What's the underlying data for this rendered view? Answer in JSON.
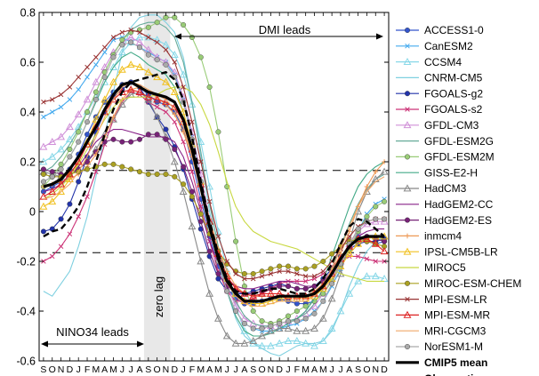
{
  "chart_data": {
    "type": "line",
    "title": "",
    "xlabel": "",
    "ylabel": "",
    "ylim": [
      -0.6,
      0.8
    ],
    "yticks": [
      "0.8",
      "0.6",
      "0.4",
      "0.2",
      "0",
      "-0.2",
      "-0.4",
      "-0.6"
    ],
    "x_months": [
      "S",
      "O",
      "N",
      "D",
      "J",
      "F",
      "M",
      "A",
      "M",
      "J",
      "J",
      "A",
      "S",
      "O",
      "N",
      "D",
      "J",
      "F",
      "M",
      "A",
      "M",
      "J",
      "J",
      "A",
      "S",
      "O",
      "N",
      "D",
      "J",
      "F",
      "M",
      "A",
      "M",
      "J",
      "J",
      "A",
      "S",
      "O",
      "N",
      "D"
    ],
    "reference_lines": [
      0.165,
      -0.165
    ],
    "zero_lag_band": {
      "from_index": 12,
      "to_index": 15,
      "label": "zero lag"
    },
    "annotations": {
      "dmi_leads": "DMI leads",
      "nino34_leads": "NINO34 leads"
    },
    "legend_placement": "right-outside",
    "series": [
      {
        "name": "ACCESS1-0",
        "color": "#3355cc",
        "marker": "circle",
        "values": [
          0.08,
          0.1,
          0.12,
          0.17,
          0.23,
          0.31,
          0.38,
          0.44,
          0.48,
          0.51,
          0.52,
          0.5,
          0.47,
          0.44,
          0.43,
          0.4,
          0.33,
          0.2,
          0.05,
          -0.1,
          -0.22,
          -0.31,
          -0.35,
          -0.37,
          -0.37,
          -0.36,
          -0.35,
          -0.35,
          -0.36,
          -0.37,
          -0.37,
          -0.36,
          -0.33,
          -0.28,
          -0.2,
          -0.13,
          -0.1,
          -0.12,
          -0.13,
          -0.12
        ]
      },
      {
        "name": "CanESM2",
        "color": "#44aaee",
        "marker": "x",
        "values": [
          0.38,
          0.4,
          0.42,
          0.45,
          0.49,
          0.54,
          0.59,
          0.64,
          0.69,
          0.7,
          0.68,
          0.66,
          0.64,
          0.62,
          0.6,
          0.55,
          0.45,
          0.3,
          0.12,
          -0.05,
          -0.2,
          -0.32,
          -0.4,
          -0.45,
          -0.47,
          -0.48,
          -0.48,
          -0.47,
          -0.46,
          -0.45,
          -0.43,
          -0.4,
          -0.36,
          -0.3,
          -0.23,
          -0.15,
          -0.08,
          -0.01,
          0.03,
          0.05
        ]
      },
      {
        "name": "CCSM4",
        "color": "#88d8e8",
        "marker": "triangle",
        "values": [
          0.2,
          0.22,
          0.25,
          0.29,
          0.34,
          0.4,
          0.46,
          0.52,
          0.58,
          0.64,
          0.68,
          0.7,
          0.7,
          0.69,
          0.67,
          0.63,
          0.55,
          0.43,
          0.28,
          0.1,
          -0.08,
          -0.24,
          -0.38,
          -0.48,
          -0.53,
          -0.54,
          -0.54,
          -0.53,
          -0.52,
          -0.52,
          -0.53,
          -0.54,
          -0.52,
          -0.47,
          -0.4,
          -0.33,
          -0.28,
          -0.26,
          -0.26,
          -0.27
        ]
      },
      {
        "name": "CNRM-CM5",
        "color": "#7fd0e0",
        "marker": "none",
        "values": [
          -0.32,
          -0.34,
          -0.29,
          -0.24,
          -0.14,
          -0.02,
          0.14,
          0.3,
          0.48,
          0.64,
          0.74,
          0.78,
          0.79,
          0.79,
          0.76,
          0.72,
          0.62,
          0.44,
          0.22,
          0.0,
          -0.18,
          -0.32,
          -0.43,
          -0.5,
          -0.53,
          -0.55,
          -0.57,
          -0.58,
          -0.56,
          -0.54,
          -0.53,
          -0.53,
          -0.52,
          -0.48,
          -0.4,
          -0.3,
          -0.22,
          -0.16,
          -0.12,
          -0.1
        ]
      },
      {
        "name": "FGOALS-g2",
        "color": "#2233aa",
        "marker": "circle",
        "values": [
          -0.08,
          -0.07,
          -0.03,
          0.03,
          0.12,
          0.22,
          0.32,
          0.4,
          0.46,
          0.49,
          0.52,
          0.5,
          0.44,
          0.38,
          0.33,
          0.26,
          0.17,
          0.05,
          -0.07,
          -0.18,
          -0.27,
          -0.32,
          -0.33,
          -0.33,
          -0.32,
          -0.31,
          -0.3,
          -0.29,
          -0.3,
          -0.31,
          -0.31,
          -0.3,
          -0.27,
          -0.23,
          -0.18,
          -0.15,
          -0.13,
          -0.12,
          -0.12,
          -0.11
        ]
      },
      {
        "name": "FGOALS-s2",
        "color": "#cc3377",
        "marker": "x",
        "values": [
          -0.2,
          -0.18,
          -0.14,
          -0.09,
          -0.02,
          0.06,
          0.16,
          0.27,
          0.37,
          0.44,
          0.48,
          0.47,
          0.44,
          0.42,
          0.4,
          0.36,
          0.28,
          0.16,
          0.02,
          -0.12,
          -0.24,
          -0.32,
          -0.36,
          -0.36,
          -0.35,
          -0.33,
          -0.31,
          -0.29,
          -0.28,
          -0.28,
          -0.28,
          -0.27,
          -0.25,
          -0.22,
          -0.19,
          -0.18,
          -0.18,
          -0.19,
          -0.2,
          -0.2
        ]
      },
      {
        "name": "GFDL-CM3",
        "color": "#d090d8",
        "marker": "triangle",
        "values": [
          0.26,
          0.28,
          0.3,
          0.34,
          0.39,
          0.45,
          0.52,
          0.58,
          0.64,
          0.68,
          0.7,
          0.68,
          0.65,
          0.62,
          0.6,
          0.56,
          0.46,
          0.32,
          0.15,
          -0.03,
          -0.18,
          -0.3,
          -0.38,
          -0.43,
          -0.45,
          -0.46,
          -0.46,
          -0.45,
          -0.44,
          -0.43,
          -0.41,
          -0.38,
          -0.33,
          -0.27,
          -0.2,
          -0.13,
          -0.08,
          -0.05,
          -0.04,
          -0.04
        ]
      },
      {
        "name": "GFDL-ESM2G",
        "color": "#66aa99",
        "marker": "none",
        "values": [
          0.16,
          0.18,
          0.22,
          0.27,
          0.33,
          0.4,
          0.48,
          0.56,
          0.63,
          0.69,
          0.73,
          0.75,
          0.76,
          0.76,
          0.74,
          0.7,
          0.6,
          0.44,
          0.24,
          0.03,
          -0.14,
          -0.27,
          -0.36,
          -0.42,
          -0.45,
          -0.46,
          -0.46,
          -0.45,
          -0.44,
          -0.43,
          -0.41,
          -0.37,
          -0.31,
          -0.23,
          -0.14,
          -0.05,
          0.03,
          0.09,
          0.13,
          0.15
        ]
      },
      {
        "name": "GFDL-ESM2M",
        "color": "#99cc77",
        "marker": "circle",
        "values": [
          0.1,
          0.14,
          0.19,
          0.25,
          0.32,
          0.4,
          0.48,
          0.56,
          0.63,
          0.69,
          0.72,
          0.73,
          0.74,
          0.76,
          0.78,
          0.78,
          0.75,
          0.7,
          0.62,
          0.5,
          0.32,
          0.1,
          -0.12,
          -0.3,
          -0.4,
          -0.44,
          -0.45,
          -0.44,
          -0.42,
          -0.4,
          -0.38,
          -0.36,
          -0.33,
          -0.28,
          -0.22,
          -0.15,
          -0.08,
          -0.02,
          0.02,
          0.04
        ]
      },
      {
        "name": "GISS-E2-H",
        "color": "#44aa88",
        "marker": "none",
        "values": [
          0.12,
          0.14,
          0.17,
          0.22,
          0.28,
          0.36,
          0.44,
          0.52,
          0.58,
          0.62,
          0.64,
          0.62,
          0.59,
          0.57,
          0.55,
          0.5,
          0.4,
          0.26,
          0.1,
          -0.06,
          -0.2,
          -0.32,
          -0.42,
          -0.48,
          -0.5,
          -0.5,
          -0.49,
          -0.47,
          -0.45,
          -0.43,
          -0.4,
          -0.35,
          -0.28,
          -0.18,
          -0.08,
          0.02,
          0.1,
          0.15,
          0.18,
          0.2
        ]
      },
      {
        "name": "HadCM3",
        "color": "#888888",
        "marker": "triangle",
        "values": [
          0.16,
          0.15,
          0.14,
          0.15,
          0.17,
          0.2,
          0.25,
          0.31,
          0.37,
          0.43,
          0.47,
          0.48,
          0.45,
          0.38,
          0.3,
          0.2,
          0.08,
          -0.06,
          -0.2,
          -0.33,
          -0.43,
          -0.5,
          -0.53,
          -0.53,
          -0.52,
          -0.5,
          -0.48,
          -0.47,
          -0.47,
          -0.48,
          -0.48,
          -0.47,
          -0.43,
          -0.35,
          -0.25,
          -0.12,
          0.0,
          0.08,
          0.13,
          0.16
        ]
      },
      {
        "name": "HadGEM2-CC",
        "color": "#882288",
        "marker": "none",
        "values": [
          0.08,
          0.09,
          0.11,
          0.14,
          0.18,
          0.23,
          0.28,
          0.31,
          0.33,
          0.33,
          0.32,
          0.31,
          0.3,
          0.3,
          0.3,
          0.28,
          0.22,
          0.12,
          0.0,
          -0.12,
          -0.21,
          -0.27,
          -0.3,
          -0.31,
          -0.31,
          -0.3,
          -0.29,
          -0.28,
          -0.28,
          -0.29,
          -0.3,
          -0.3,
          -0.28,
          -0.24,
          -0.19,
          -0.14,
          -0.1,
          -0.08,
          -0.07,
          -0.07
        ]
      },
      {
        "name": "HadGEM2-ES",
        "color": "#772277",
        "marker": "circle",
        "values": [
          0.17,
          0.16,
          0.15,
          0.15,
          0.17,
          0.2,
          0.24,
          0.28,
          0.29,
          0.28,
          0.28,
          0.29,
          0.31,
          0.31,
          0.29,
          0.25,
          0.18,
          0.08,
          -0.04,
          -0.16,
          -0.25,
          -0.3,
          -0.32,
          -0.33,
          -0.33,
          -0.32,
          -0.31,
          -0.3,
          -0.3,
          -0.31,
          -0.31,
          -0.3,
          -0.28,
          -0.24,
          -0.19,
          -0.14,
          -0.11,
          -0.1,
          -0.11,
          -0.12
        ]
      },
      {
        "name": "inmcm4",
        "color": "#ee9955",
        "marker": "plus",
        "values": [
          0.1,
          0.11,
          0.12,
          0.13,
          0.15,
          0.18,
          0.23,
          0.3,
          0.38,
          0.45,
          0.49,
          0.5,
          0.48,
          0.46,
          0.43,
          0.39,
          0.32,
          0.22,
          0.1,
          -0.03,
          -0.15,
          -0.24,
          -0.3,
          -0.33,
          -0.34,
          -0.34,
          -0.34,
          -0.34,
          -0.35,
          -0.35,
          -0.34,
          -0.32,
          -0.29,
          -0.24,
          -0.17,
          -0.08,
          0.02,
          0.1,
          0.16,
          0.2
        ]
      },
      {
        "name": "IPSL-CM5B-LR",
        "color": "#f0c020",
        "marker": "triangle",
        "values": [
          0.02,
          0.04,
          0.08,
          0.13,
          0.2,
          0.28,
          0.37,
          0.45,
          0.52,
          0.57,
          0.59,
          0.58,
          0.56,
          0.54,
          0.52,
          0.48,
          0.4,
          0.27,
          0.12,
          -0.04,
          -0.17,
          -0.27,
          -0.33,
          -0.36,
          -0.37,
          -0.37,
          -0.36,
          -0.35,
          -0.35,
          -0.35,
          -0.35,
          -0.34,
          -0.31,
          -0.27,
          -0.22,
          -0.17,
          -0.13,
          -0.11,
          -0.1,
          -0.1
        ]
      },
      {
        "name": "MIROC5",
        "color": "#c8d840",
        "marker": "none",
        "values": [
          0.05,
          0.07,
          0.1,
          0.14,
          0.19,
          0.25,
          0.31,
          0.37,
          0.42,
          0.45,
          0.46,
          0.46,
          0.46,
          0.47,
          0.49,
          0.5,
          0.5,
          0.48,
          0.43,
          0.35,
          0.24,
          0.12,
          0.02,
          -0.04,
          -0.08,
          -0.1,
          -0.12,
          -0.13,
          -0.14,
          -0.15,
          -0.17,
          -0.19,
          -0.21,
          -0.23,
          -0.25,
          -0.26,
          -0.27,
          -0.28,
          -0.28,
          -0.28
        ]
      },
      {
        "name": "MIROC-ESM-CHEM",
        "color": "#aaa022",
        "marker": "circle",
        "values": [
          0.15,
          0.14,
          0.14,
          0.15,
          0.16,
          0.17,
          0.18,
          0.19,
          0.19,
          0.18,
          0.17,
          0.16,
          0.15,
          0.15,
          0.15,
          0.14,
          0.11,
          0.06,
          -0.01,
          -0.09,
          -0.16,
          -0.21,
          -0.24,
          -0.25,
          -0.25,
          -0.24,
          -0.23,
          -0.22,
          -0.22,
          -0.23,
          -0.23,
          -0.22,
          -0.2,
          -0.17,
          -0.14,
          -0.12,
          -0.11,
          -0.12,
          -0.13,
          -0.14
        ]
      },
      {
        "name": "MPI-ESM-LR",
        "color": "#993333",
        "marker": "x",
        "values": [
          0.44,
          0.45,
          0.47,
          0.5,
          0.54,
          0.58,
          0.62,
          0.66,
          0.7,
          0.72,
          0.73,
          0.72,
          0.7,
          0.68,
          0.65,
          0.6,
          0.5,
          0.36,
          0.2,
          0.04,
          -0.1,
          -0.2,
          -0.25,
          -0.27,
          -0.27,
          -0.26,
          -0.25,
          -0.24,
          -0.24,
          -0.25,
          -0.26,
          -0.26,
          -0.24,
          -0.2,
          -0.15,
          -0.1,
          -0.06,
          -0.04,
          -0.03,
          -0.03
        ]
      },
      {
        "name": "MPI-ESM-MR",
        "color": "#dd2222",
        "marker": "triangle",
        "values": [
          0.06,
          0.08,
          0.11,
          0.15,
          0.2,
          0.27,
          0.34,
          0.4,
          0.45,
          0.48,
          0.49,
          0.48,
          0.46,
          0.45,
          0.44,
          0.42,
          0.36,
          0.25,
          0.11,
          -0.04,
          -0.17,
          -0.26,
          -0.31,
          -0.33,
          -0.34,
          -0.33,
          -0.33,
          -0.33,
          -0.34,
          -0.34,
          -0.34,
          -0.33,
          -0.3,
          -0.25,
          -0.19,
          -0.14,
          -0.11,
          -0.11,
          -0.13,
          -0.16
        ]
      },
      {
        "name": "MRI-CGCM3",
        "color": "#f0a868",
        "marker": "none",
        "values": [
          0.05,
          0.06,
          0.08,
          0.11,
          0.16,
          0.22,
          0.3,
          0.38,
          0.45,
          0.5,
          0.52,
          0.51,
          0.49,
          0.47,
          0.45,
          0.41,
          0.34,
          0.22,
          0.08,
          -0.07,
          -0.2,
          -0.29,
          -0.34,
          -0.37,
          -0.38,
          -0.38,
          -0.37,
          -0.36,
          -0.36,
          -0.36,
          -0.36,
          -0.34,
          -0.3,
          -0.23,
          -0.15,
          -0.06,
          0.02,
          0.08,
          0.12,
          0.14
        ]
      },
      {
        "name": "NorESM1-M",
        "color": "#aaaaaa",
        "marker": "circle",
        "values": [
          0.12,
          0.14,
          0.17,
          0.22,
          0.28,
          0.36,
          0.45,
          0.54,
          0.62,
          0.67,
          0.68,
          0.66,
          0.63,
          0.61,
          0.59,
          0.54,
          0.44,
          0.29,
          0.12,
          -0.05,
          -0.2,
          -0.32,
          -0.4,
          -0.45,
          -0.47,
          -0.47,
          -0.46,
          -0.45,
          -0.44,
          -0.44,
          -0.43,
          -0.41,
          -0.36,
          -0.29,
          -0.21,
          -0.13,
          -0.07,
          -0.04,
          -0.03,
          -0.03
        ]
      },
      {
        "name": "CMIP5 mean",
        "color": "#000000",
        "marker": "none",
        "style": "thick",
        "values": [
          0.1,
          0.11,
          0.13,
          0.17,
          0.22,
          0.28,
          0.34,
          0.41,
          0.47,
          0.51,
          0.52,
          0.5,
          0.48,
          0.47,
          0.46,
          0.44,
          0.37,
          0.25,
          0.1,
          -0.06,
          -0.19,
          -0.28,
          -0.33,
          -0.36,
          -0.36,
          -0.36,
          -0.35,
          -0.34,
          -0.34,
          -0.34,
          -0.34,
          -0.33,
          -0.3,
          -0.25,
          -0.19,
          -0.14,
          -0.11,
          -0.1,
          -0.1,
          -0.1
        ]
      },
      {
        "name": "Observations",
        "color": "#000000",
        "marker": "none",
        "style": "dashed",
        "values": [
          -0.1,
          -0.08,
          -0.07,
          -0.03,
          0.02,
          0.1,
          0.2,
          0.31,
          0.41,
          0.48,
          0.52,
          0.53,
          0.54,
          0.55,
          0.56,
          0.53,
          0.45,
          0.3,
          0.12,
          -0.04,
          -0.17,
          -0.27,
          -0.32,
          -0.33,
          -0.33,
          -0.32,
          -0.31,
          -0.31,
          -0.32,
          -0.33,
          -0.33,
          -0.31,
          -0.27,
          -0.21,
          -0.13,
          -0.06,
          -0.03,
          -0.04,
          -0.07,
          -0.1
        ]
      }
    ]
  }
}
